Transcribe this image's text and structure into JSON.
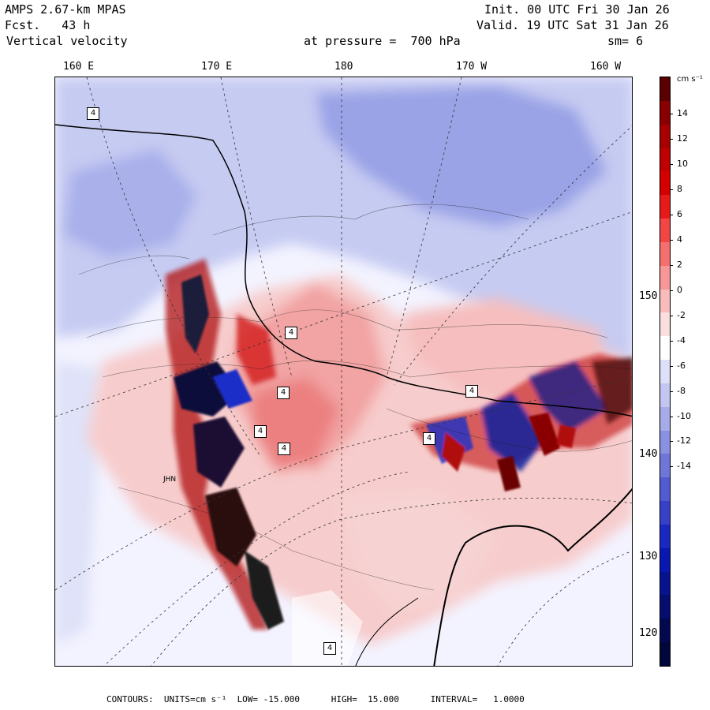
{
  "header": {
    "model": "AMPS 2.67-km MPAS",
    "forecast": "Fcst.   43 h",
    "field": "Vertical velocity",
    "level": "at pressure =  700 hPa",
    "init": "Init. 00 UTC Fri 30 Jan 26",
    "valid": "Valid. 19 UTC Sat 31 Jan 26",
    "smoothing": "sm= 6"
  },
  "map": {
    "longitude_labels": [
      "160 E",
      "170 E",
      "180",
      "170 W",
      "160 W"
    ],
    "latitude_labels": [
      "150 W",
      "140 W",
      "130 W",
      "120 W"
    ],
    "place_label": "JHN",
    "contour_box_label": "4",
    "colors": {
      "positive_light": "#f6c9c9",
      "positive_mid": "#ee8a8a",
      "positive_strong": "#d81d1d",
      "positive_max": "#7a0000",
      "negative_light": "#c8cdf2",
      "negative_mid": "#7f8ce0",
      "negative_strong": "#1a2fc8",
      "negative_max": "#020a6a",
      "neutral": "#f4f4ff"
    }
  },
  "colorbar": {
    "unit": "cm s⁻¹",
    "labels": [
      "14",
      "12",
      "10",
      "8",
      "6",
      "4",
      "2",
      "0",
      "-2",
      "-4",
      "-6",
      "-8",
      "-10",
      "-12",
      "-14"
    ],
    "colors": [
      "#5a0000",
      "#8a0000",
      "#a80000",
      "#bf0000",
      "#d40000",
      "#e61a1a",
      "#f24545",
      "#f56f6f",
      "#f79797",
      "#f9bcbc",
      "#fbdede",
      "#ffffff",
      "#dedff8",
      "#c3c6f0",
      "#a7ace8",
      "#8a91e0",
      "#6e77d8",
      "#525cd0",
      "#3641c8",
      "#1a27c0",
      "#0a17b0",
      "#07128f",
      "#050d6f",
      "#03094f",
      "#02063a"
    ]
  },
  "footer": {
    "text": "CONTOURS:  UNITS=cm s⁻¹  LOW= -15.000      HIGH=  15.000      INTERVAL=   1.0000"
  }
}
